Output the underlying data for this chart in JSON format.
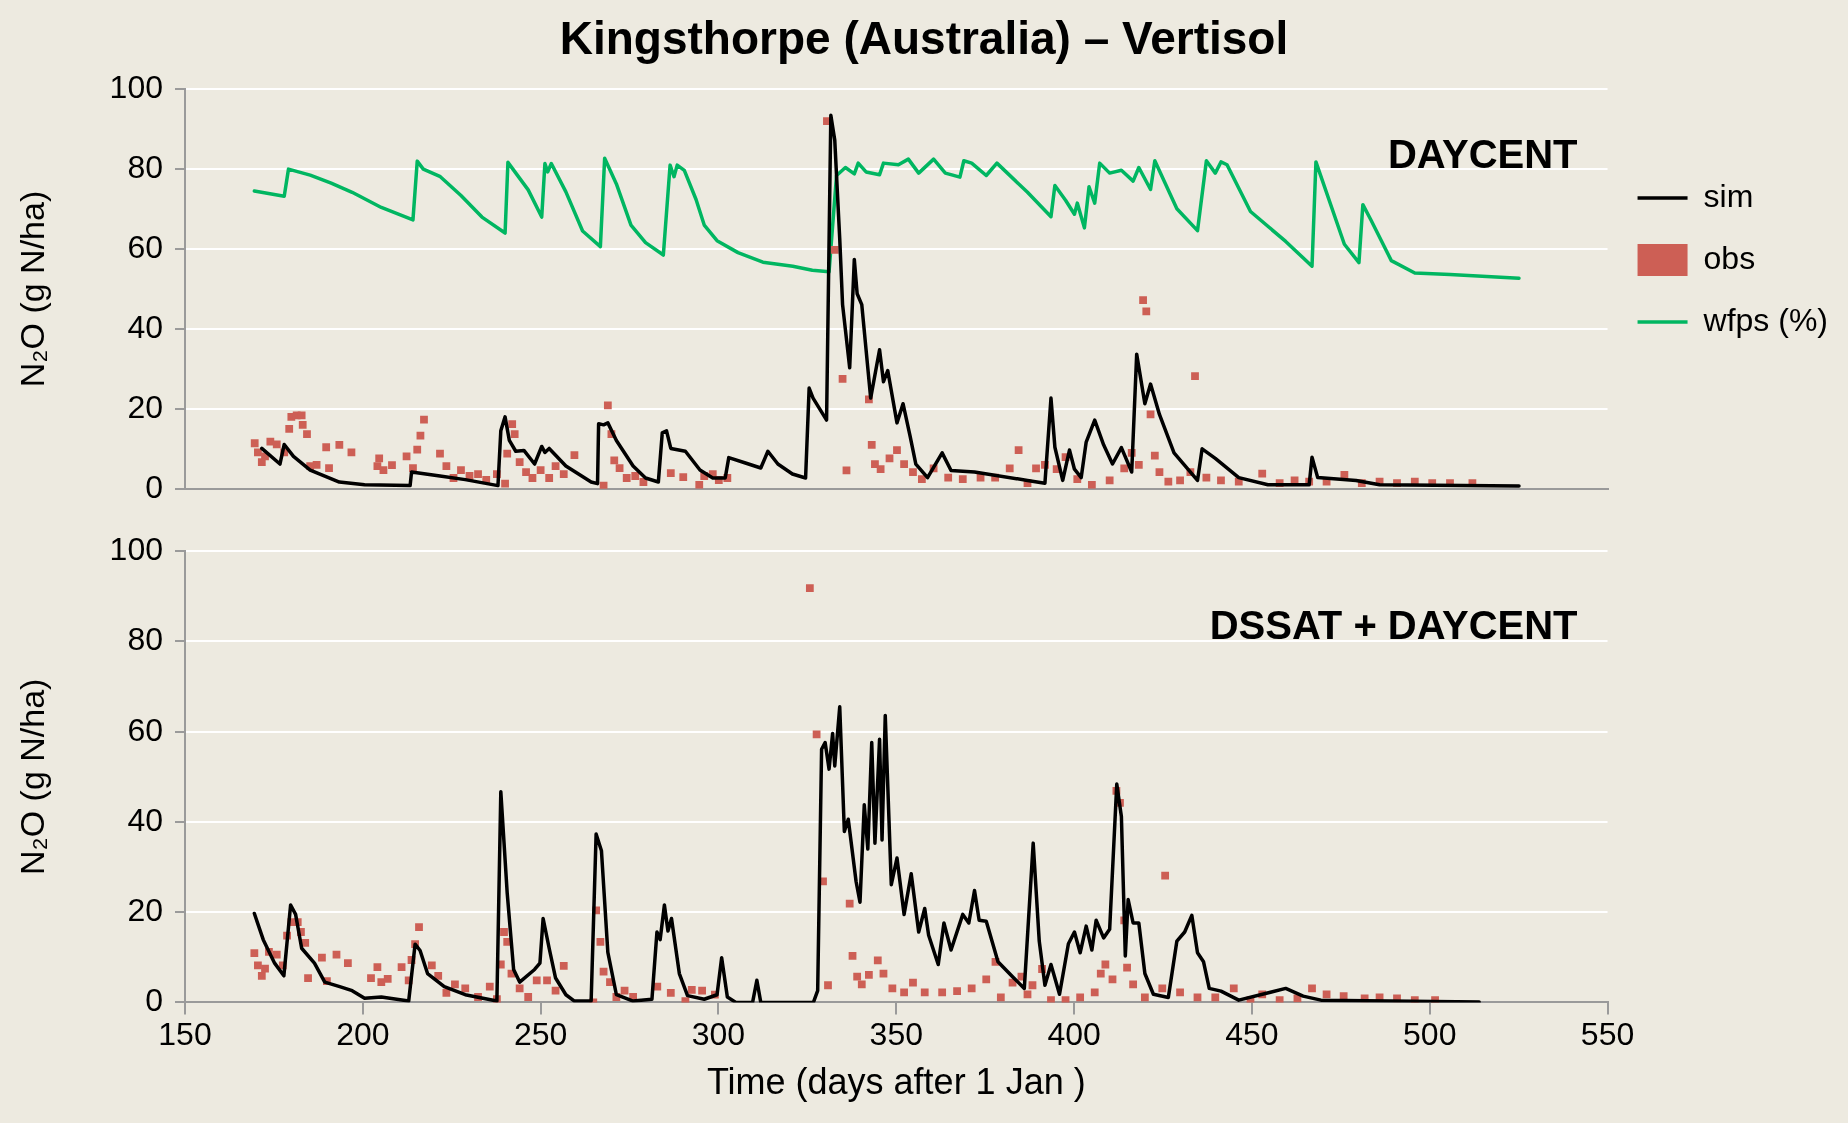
{
  "chart_data": [
    {
      "type": "line",
      "title": "Kingsthorpe (Australia) – Vertisol",
      "ylabel": "N₂O (g N/ha)",
      "annotations": [
        "DAYCENT"
      ],
      "xlim": [
        150,
        550
      ],
      "xticks": [
        150,
        200,
        250,
        300,
        350,
        400,
        450,
        500,
        550
      ],
      "ylim": [
        0,
        100
      ],
      "yticks": [
        0,
        20,
        40,
        60,
        80,
        100
      ],
      "tick_labels": "y",
      "grid": "y",
      "legend": "right",
      "series": [
        {
          "name": "sim",
          "color": "#000000",
          "marker": "none",
          "x": [
            171.6,
            176.7,
            177.9,
            180.5,
            185.2,
            193.4,
            200.5,
            213.3,
            213.7,
            221.7,
            228.8,
            238.0,
            238.8,
            240.0,
            241.2,
            243.0,
            245.3,
            248.3,
            250.3,
            251.2,
            252.4,
            257.1,
            264.2,
            266.0,
            266.3,
            267.7,
            268.9,
            271.3,
            276.0,
            279.5,
            283.1,
            284.2,
            285.4,
            286.6,
            290.7,
            294.8,
            298.4,
            301.9,
            302.9,
            307.8,
            311.9,
            313.9,
            316.7,
            320.8,
            324.5,
            325.5,
            326.6,
            330.4,
            331.6,
            332.7,
            334.1,
            334.9,
            336.9,
            338.2,
            339.0,
            340.3,
            342.8,
            345.3,
            346.4,
            347.6,
            350.2,
            351.9,
            353.9,
            355.5,
            358.8,
            362.9,
            365.4,
            372.0,
            386.9,
            391.8,
            393.5,
            394.6,
            396.8,
            398.7,
            400.1,
            402.0,
            403.4,
            405.8,
            408.3,
            410.8,
            413.3,
            416.2,
            417.6,
            419.9,
            421.5,
            424.0,
            428.1,
            434.7,
            436.0,
            439.7,
            446.3,
            454.5,
            466.1,
            466.9,
            468.5,
            479.3,
            485.9,
            525.1
          ],
          "values": [
            10.1,
            6.2,
            11.1,
            8.1,
            4.7,
            1.7,
            1.0,
            0.8,
            4.2,
            3.2,
            2.3,
            0.8,
            14.5,
            18.0,
            12.1,
            9.4,
            9.6,
            6.2,
            10.6,
            9.1,
            10.1,
            5.7,
            1.7,
            1.3,
            16.3,
            16.0,
            16.5,
            12.1,
            5.7,
            2.7,
            1.7,
            14.0,
            14.5,
            10.1,
            9.4,
            4.7,
            2.7,
            2.7,
            7.8,
            6.4,
            5.2,
            9.4,
            6.2,
            3.7,
            2.7,
            25.2,
            22.7,
            17.2,
            93.5,
            87.3,
            62.6,
            46.1,
            30.3,
            57.4,
            48.8,
            46.1,
            22.7,
            34.8,
            26.8,
            29.6,
            16.5,
            21.3,
            13.1,
            6.2,
            2.8,
            9.0,
            4.6,
            4.2,
            2.1,
            1.4,
            22.7,
            10.4,
            2.1,
            9.7,
            4.9,
            2.8,
            11.7,
            17.2,
            11.0,
            6.2,
            10.3,
            4.2,
            33.7,
            21.3,
            26.2,
            18.6,
            9.0,
            2.1,
            10.0,
            7.6,
            2.8,
            1.0,
            1.0,
            7.9,
            2.8,
            2.1,
            1.0,
            0.7
          ]
        },
        {
          "name": "obs",
          "type": "scatter",
          "color": "#cd5f55",
          "marker": "square",
          "x": [
            169.6,
            170.5,
            171.6,
            172.5,
            174.0,
            175.8,
            177.9,
            179.3,
            179.9,
            181.4,
            182.8,
            183.1,
            184.3,
            185.2,
            187.0,
            189.7,
            190.5,
            193.4,
            196.8,
            204.1,
            204.6,
            205.8,
            208.2,
            212.3,
            214.1,
            215.3,
            216.2,
            217.2,
            221.7,
            223.5,
            225.5,
            227.6,
            230.0,
            232.4,
            234.7,
            237.7,
            240.0,
            240.6,
            242.0,
            242.7,
            244.1,
            245.9,
            247.7,
            250.0,
            252.4,
            254.2,
            256.5,
            259.5,
            267.7,
            268.9,
            269.9,
            270.7,
            272.2,
            274.2,
            276.6,
            278.9,
            286.6,
            290.1,
            294.6,
            296.0,
            298.4,
            300.1,
            302.5,
            330.5,
            332.7,
            334.9,
            336.0,
            342.3,
            343.1,
            344.0,
            345.6,
            348.1,
            350.2,
            352.2,
            354.7,
            357.2,
            360.5,
            364.6,
            368.7,
            373.7,
            377.8,
            381.9,
            384.4,
            386.9,
            389.3,
            391.8,
            395.1,
            397.6,
            400.9,
            405.0,
            410.0,
            414.1,
            416.2,
            418.2,
            419.4,
            420.3,
            421.5,
            422.7,
            424.0,
            426.5,
            429.8,
            432.7,
            434.0,
            437.2,
            441.3,
            446.3,
            452.9,
            457.8,
            462.0,
            466.1,
            471.0,
            476.0,
            480.9,
            485.9,
            490.8,
            495.8,
            500.7,
            505.7,
            512.0
          ],
          "values": [
            11.4,
            9.1,
            6.7,
            8.1,
            11.8,
            11.1,
            9.1,
            15.0,
            18.0,
            18.4,
            18.4,
            16.0,
            13.7,
            5.7,
            6.0,
            10.4,
            5.2,
            11.0,
            9.1,
            5.7,
            7.6,
            4.7,
            5.9,
            8.1,
            5.2,
            9.8,
            13.3,
            17.3,
            8.8,
            5.7,
            2.7,
            4.7,
            3.2,
            3.7,
            2.2,
            3.7,
            1.3,
            8.8,
            16.2,
            13.7,
            6.7,
            4.2,
            2.7,
            4.7,
            2.7,
            5.7,
            3.7,
            8.4,
            0.8,
            20.9,
            13.7,
            7.1,
            5.2,
            2.7,
            3.2,
            1.7,
            3.9,
            2.9,
            1.0,
            3.2,
            3.7,
            2.2,
            2.7,
            92.0,
            59.8,
            27.5,
            4.6,
            22.4,
            11.0,
            6.2,
            4.9,
            7.6,
            9.7,
            6.2,
            4.2,
            2.4,
            5.1,
            2.8,
            2.4,
            2.8,
            2.8,
            5.1,
            9.7,
            1.4,
            5.1,
            6.0,
            4.9,
            7.9,
            2.4,
            1.0,
            2.1,
            5.1,
            9.0,
            6.0,
            47.2,
            44.4,
            18.6,
            8.3,
            4.2,
            1.8,
            2.1,
            4.2,
            28.2,
            2.8,
            2.1,
            1.8,
            3.8,
            1.4,
            2.1,
            1.8,
            1.8,
            3.5,
            1.4,
            1.8,
            1.4,
            1.8,
            1.4,
            1.4,
            1.4
          ]
        },
        {
          "name": "wfps (%)",
          "color": "#00b661",
          "marker": "none",
          "x": [
            169.5,
            177.9,
            179.1,
            185.2,
            191.1,
            197.0,
            205.2,
            214.1,
            215.3,
            217.0,
            221.8,
            227.6,
            233.5,
            240.0,
            240.8,
            246.5,
            250.3,
            251.2,
            252.0,
            253.0,
            257.1,
            261.8,
            266.8,
            268.0,
            271.3,
            275.4,
            279.5,
            284.5,
            286.4,
            287.5,
            288.4,
            290.4,
            293.7,
            296.0,
            299.6,
            305.5,
            312.5,
            320.9,
            326.4,
            331.1,
            333.2,
            335.7,
            338.2,
            339.3,
            341.5,
            345.3,
            346.4,
            350.6,
            353.4,
            356.3,
            360.5,
            363.8,
            367.9,
            369.0,
            371.2,
            375.3,
            378.3,
            386.9,
            393.5,
            394.6,
            397.6,
            400.1,
            400.9,
            402.9,
            404.2,
            405.8,
            407.2,
            410.0,
            413.3,
            416.6,
            418.2,
            421.5,
            422.7,
            428.9,
            434.7,
            437.2,
            439.7,
            441.3,
            443.0,
            449.6,
            459.5,
            466.9,
            468.0,
            476.0,
            480.1,
            481.2,
            483.4,
            489.2,
            495.8,
            505.7,
            525.1
          ],
          "values": [
            74.5,
            73.2,
            80.0,
            78.5,
            76.5,
            74.2,
            70.4,
            67.3,
            82.0,
            80.0,
            78.1,
            73.4,
            68.0,
            64.0,
            81.7,
            74.8,
            68.0,
            81.4,
            79.3,
            81.4,
            74.3,
            64.5,
            60.6,
            82.7,
            76.3,
            66.0,
            61.6,
            58.5,
            81.0,
            78.1,
            81.0,
            79.7,
            72.4,
            66.0,
            62.1,
            59.1,
            56.7,
            55.7,
            54.7,
            54.3,
            78.4,
            80.4,
            78.8,
            81.5,
            79.3,
            78.6,
            81.5,
            81.1,
            82.5,
            79.0,
            82.5,
            79.0,
            78.0,
            82.1,
            81.5,
            78.4,
            81.5,
            74.2,
            68.1,
            75.9,
            72.2,
            68.7,
            71.5,
            65.3,
            75.6,
            71.5,
            81.5,
            79.0,
            79.7,
            77.0,
            80.4,
            74.9,
            82.1,
            70.1,
            64.6,
            82.1,
            79.0,
            81.8,
            81.1,
            69.4,
            61.9,
            55.7,
            81.8,
            61.2,
            56.6,
            71.1,
            67.4,
            57.1,
            54.0,
            53.6,
            52.7
          ]
        }
      ]
    },
    {
      "type": "line",
      "xlabel": "Time (days after 1 Jan )",
      "ylabel": "N₂O (g N/ha)",
      "annotations": [
        "DSSAT + DAYCENT"
      ],
      "xlim": [
        150,
        550
      ],
      "xticks": [
        150,
        200,
        250,
        300,
        350,
        400,
        450,
        500,
        550
      ],
      "ylim": [
        0,
        100
      ],
      "yticks": [
        0,
        20,
        40,
        60,
        80,
        100
      ],
      "grid": "y",
      "series": [
        {
          "color": "#000000",
          "marker": "none",
          "x": [
            169.5,
            172.0,
            175.2,
            177.8,
            179.7,
            181.1,
            182.8,
            186.4,
            189.3,
            193.5,
            197.0,
            200.5,
            205.2,
            212.9,
            214.7,
            216.1,
            218.2,
            222.9,
            228.8,
            237.7,
            238.8,
            240.6,
            242.4,
            244.1,
            248.3,
            249.8,
            250.7,
            252.4,
            254.2,
            257.1,
            259.5,
            264.2,
            265.6,
            267.1,
            268.9,
            271.3,
            276.0,
            281.3,
            282.7,
            283.6,
            284.8,
            285.8,
            286.8,
            289.0,
            291.3,
            296.0,
            299.6,
            300.9,
            302.5,
            304.9,
            309.6,
            310.8,
            311.9,
            326.7,
            327.9,
            329.0,
            330.0,
            331.1,
            332.1,
            332.7,
            334.1,
            335.4,
            336.5,
            338.7,
            339.8,
            341.0,
            342.0,
            343.1,
            344.0,
            345.3,
            346.0,
            346.9,
            348.6,
            350.2,
            352.2,
            354.2,
            356.3,
            358.0,
            359.1,
            361.8,
            363.4,
            365.4,
            368.7,
            370.4,
            372.0,
            373.3,
            375.3,
            378.6,
            382.7,
            386.0,
            388.5,
            390.2,
            391.8,
            393.5,
            395.9,
            398.4,
            400.1,
            401.7,
            403.4,
            405.0,
            406.2,
            408.3,
            410.0,
            412.0,
            413.3,
            414.4,
            415.2,
            416.6,
            418.2,
            419.9,
            422.3,
            426.5,
            428.9,
            431.1,
            433.1,
            434.7,
            436.4,
            438.0,
            441.3,
            446.3,
            459.5,
            464.4,
            469.4,
            513.9
          ],
          "values": [
            19.7,
            13.9,
            8.7,
            5.9,
            21.6,
            19.5,
            12.0,
            8.7,
            4.5,
            3.5,
            2.6,
            0.9,
            1.2,
            0.3,
            12.9,
            11.5,
            6.4,
            3.5,
            1.7,
            0.3,
            46.7,
            24.2,
            7.3,
            4.5,
            7.3,
            8.7,
            18.6,
            12.0,
            5.4,
            1.7,
            0.3,
            0.3,
            37.3,
            33.6,
            11.1,
            1.7,
            0.3,
            0.7,
            15.6,
            13.9,
            21.6,
            15.8,
            18.6,
            6.4,
            1.5,
            0.7,
            1.7,
            9.9,
            1.2,
            0,
            0,
            4.9,
            0,
            0,
            2.6,
            56.1,
            57.6,
            51.7,
            59.6,
            52.4,
            65.5,
            37.9,
            40.6,
            26.8,
            22.2,
            43.8,
            34.0,
            57.6,
            35.3,
            58.3,
            36.0,
            63.6,
            26.1,
            32.0,
            19.5,
            28.5,
            15.6,
            20.8,
            14.9,
            8.4,
            17.6,
            11.6,
            19.5,
            17.6,
            24.8,
            18.2,
            18.0,
            9.0,
            5.7,
            3.1,
            35.3,
            13.6,
            3.8,
            8.4,
            1.8,
            13.0,
            15.6,
            11.0,
            16.9,
            11.6,
            18.2,
            14.3,
            16.2,
            48.4,
            41.2,
            10.3,
            22.8,
            17.6,
            17.6,
            6.4,
            1.8,
            1.1,
            13.6,
            15.6,
            19.3,
            11.0,
            9.0,
            3.1,
            2.5,
            0.5,
            3.1,
            1.4,
            0.5,
            0.1
          ]
        },
        {
          "type": "scatter",
          "color": "#cd5f55",
          "marker": "square",
          "x": [
            169.5,
            170.5,
            171.6,
            172.5,
            173.6,
            175.8,
            177.5,
            178.7,
            179.9,
            181.7,
            182.6,
            183.8,
            184.6,
            188.5,
            189.9,
            192.6,
            195.8,
            202.3,
            204.1,
            205.2,
            207.0,
            210.9,
            212.9,
            213.7,
            214.7,
            215.8,
            219.4,
            221.2,
            223.5,
            225.9,
            228.8,
            232.4,
            235.7,
            237.7,
            238.8,
            239.7,
            240.6,
            241.8,
            244.1,
            246.5,
            248.9,
            251.8,
            254.2,
            256.5,
            264.8,
            265.6,
            266.8,
            267.7,
            269.5,
            271.3,
            273.6,
            276.0,
            282.8,
            286.6,
            290.7,
            292.5,
            295.4,
            299.0,
            325.7,
            327.6,
            329.4,
            330.8,
            336.9,
            337.7,
            339.0,
            340.3,
            342.3,
            344.8,
            346.4,
            348.9,
            352.2,
            354.7,
            358.0,
            362.9,
            367.1,
            371.2,
            375.3,
            377.9,
            379.4,
            382.7,
            385.2,
            386.9,
            388.3,
            391.0,
            393.5,
            397.6,
            401.7,
            405.8,
            407.5,
            408.8,
            410.8,
            411.9,
            412.9,
            414.1,
            414.9,
            416.6,
            419.9,
            424.8,
            425.6,
            429.8,
            434.7,
            439.7,
            444.9,
            449.6,
            452.9,
            457.8,
            462.8,
            466.9,
            471.0,
            475.8,
            481.7,
            485.9,
            490.8,
            495.8,
            501.5
          ],
          "values": [
            10.9,
            8.2,
            5.9,
            7.5,
            11.2,
            10.6,
            8.2,
            14.8,
            17.8,
            17.8,
            15.6,
            13.2,
            5.4,
            9.9,
            4.7,
            10.6,
            8.7,
            5.4,
            7.8,
            4.5,
            5.2,
            7.8,
            4.9,
            9.4,
            12.9,
            16.7,
            8.2,
            5.9,
            2.1,
            4.0,
            3.1,
            1.2,
            3.5,
            0.7,
            8.4,
            15.6,
            13.4,
            6.4,
            3.1,
            1.2,
            4.9,
            4.9,
            2.6,
            8.1,
            0,
            20.4,
            13.4,
            6.8,
            4.5,
            1.2,
            2.6,
            1.2,
            3.5,
            2.1,
            0.3,
            2.8,
            2.6,
            1.7,
            91.8,
            59.4,
            26.8,
            3.8,
            21.9,
            10.3,
            5.7,
            4.0,
            6.1,
            9.3,
            6.4,
            3.1,
            2.2,
            4.4,
            2.2,
            2.2,
            2.5,
            3.1,
            5.1,
            9.0,
            1.1,
            4.4,
            5.7,
            1.8,
            3.8,
            7.4,
            0.5,
            0.5,
            1.1,
            2.2,
            6.4,
            8.4,
            5.1,
            46.9,
            44.2,
            18.2,
            7.7,
            4.0,
            1.1,
            3.1,
            28.1,
            2.2,
            1.1,
            1.1,
            3.1,
            0.5,
            1.8,
            0.5,
            0.9,
            3.1,
            1.8,
            1.4,
            0.9,
            1.1,
            0.9,
            0.5,
            0.5
          ]
        }
      ]
    }
  ]
}
